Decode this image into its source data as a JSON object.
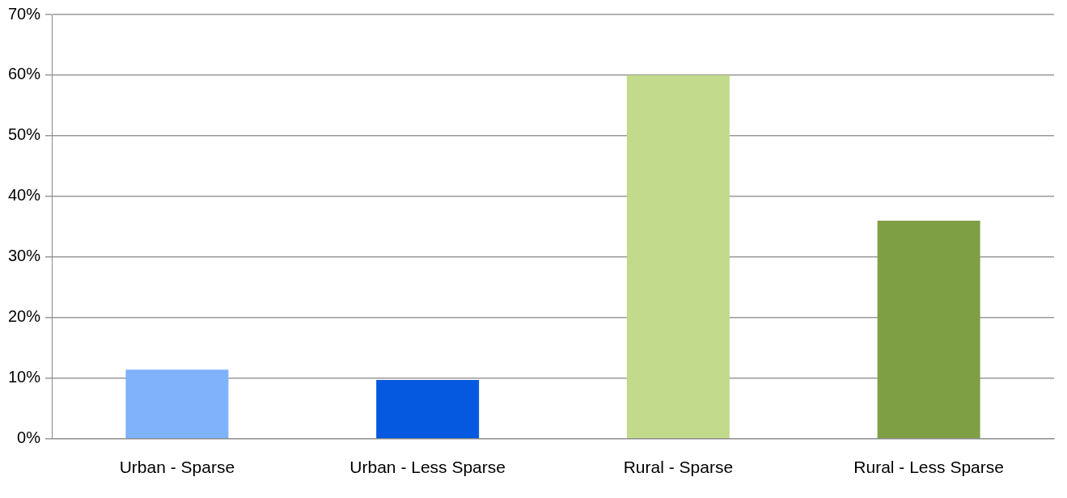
{
  "chart_data": {
    "type": "bar",
    "categories": [
      "Urban - Sparse",
      "Urban - Less Sparse",
      "Rural - Sparse",
      "Rural - Less Sparse"
    ],
    "values": [
      11.4,
      9.7,
      60,
      36
    ],
    "colors": [
      "#7eb2fb",
      "#0558e0",
      "#c1da8b",
      "#7f9f45"
    ],
    "ylim": [
      0,
      70
    ],
    "yticks": [
      {
        "value": 0,
        "label": "0%"
      },
      {
        "value": 10,
        "label": "10%"
      },
      {
        "value": 20,
        "label": "20%"
      },
      {
        "value": 30,
        "label": "30%"
      },
      {
        "value": 40,
        "label": "40%"
      },
      {
        "value": 50,
        "label": "50%"
      },
      {
        "value": 60,
        "label": "60%"
      },
      {
        "value": 70,
        "label": "70%"
      }
    ],
    "grid": "y",
    "legend": false
  }
}
